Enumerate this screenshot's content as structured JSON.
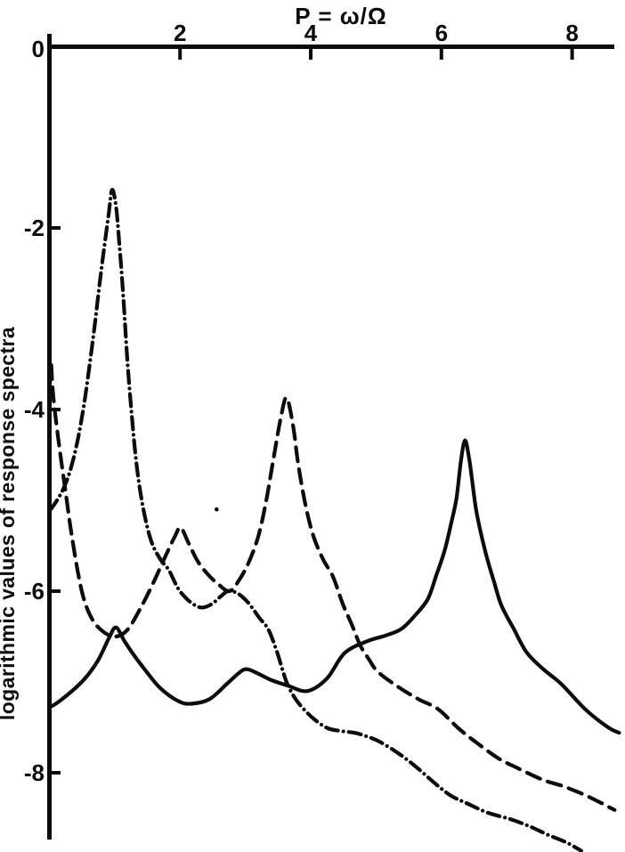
{
  "page": {
    "background": "#ffffff",
    "ink": "#0c0c0c"
  },
  "chart_data": {
    "type": "line",
    "title": "P = ω/Ω",
    "xlabel": "P = ω/Ω",
    "ylabel": "logarithmic values of response spectra",
    "origin_tick_label": "0",
    "x_ticks": [
      2,
      4,
      6,
      8
    ],
    "x_tick_labels": [
      "2",
      "4",
      "6",
      "8"
    ],
    "y_ticks": [
      -2,
      -4,
      -6,
      -8
    ],
    "y_tick_labels": [
      "-2",
      "-4",
      "-6",
      "-8"
    ],
    "xlim": [
      0,
      8.65
    ],
    "ylim": [
      -8.9,
      0
    ],
    "grid": false,
    "legend_position": "none",
    "axis_color": "#0c0c0c",
    "series": [
      {
        "name": "solid-curve",
        "style": "solid",
        "main_peak": {
          "P": 6.36,
          "value": -4.34
        },
        "points": [
          [
            0.0,
            -7.28
          ],
          [
            0.16,
            -7.21
          ],
          [
            0.51,
            -6.99
          ],
          [
            0.74,
            -6.77
          ],
          [
            0.91,
            -6.52
          ],
          [
            1.02,
            -6.4
          ],
          [
            1.15,
            -6.55
          ],
          [
            1.29,
            -6.7
          ],
          [
            1.49,
            -6.89
          ],
          [
            1.7,
            -7.07
          ],
          [
            1.97,
            -7.21
          ],
          [
            2.17,
            -7.24
          ],
          [
            2.45,
            -7.19
          ],
          [
            2.72,
            -7.02
          ],
          [
            2.92,
            -6.89
          ],
          [
            3.03,
            -6.86
          ],
          [
            3.2,
            -6.91
          ],
          [
            3.4,
            -6.98
          ],
          [
            3.65,
            -7.04
          ],
          [
            3.95,
            -7.1
          ],
          [
            4.25,
            -6.96
          ],
          [
            4.52,
            -6.68
          ],
          [
            4.87,
            -6.55
          ],
          [
            5.14,
            -6.49
          ],
          [
            5.38,
            -6.42
          ],
          [
            5.58,
            -6.28
          ],
          [
            5.79,
            -6.09
          ],
          [
            5.92,
            -5.83
          ],
          [
            6.05,
            -5.55
          ],
          [
            6.15,
            -5.25
          ],
          [
            6.23,
            -4.98
          ],
          [
            6.3,
            -4.56
          ],
          [
            6.36,
            -4.34
          ],
          [
            6.42,
            -4.52
          ],
          [
            6.47,
            -4.78
          ],
          [
            6.53,
            -5.1
          ],
          [
            6.61,
            -5.38
          ],
          [
            6.7,
            -5.64
          ],
          [
            6.81,
            -5.91
          ],
          [
            6.92,
            -6.16
          ],
          [
            7.11,
            -6.42
          ],
          [
            7.31,
            -6.68
          ],
          [
            7.56,
            -6.86
          ],
          [
            7.83,
            -7.02
          ],
          [
            8.2,
            -7.3
          ],
          [
            8.55,
            -7.5
          ],
          [
            8.72,
            -7.56
          ]
        ]
      },
      {
        "name": "dashed-curve",
        "style": "dashed",
        "main_peak": {
          "P": 3.63,
          "value": -3.87
        },
        "points": [
          [
            0.03,
            -3.51
          ],
          [
            0.06,
            -3.85
          ],
          [
            0.14,
            -4.34
          ],
          [
            0.24,
            -4.86
          ],
          [
            0.35,
            -5.42
          ],
          [
            0.49,
            -5.98
          ],
          [
            0.62,
            -6.26
          ],
          [
            0.78,
            -6.42
          ],
          [
            0.99,
            -6.5
          ],
          [
            1.19,
            -6.43
          ],
          [
            1.4,
            -6.18
          ],
          [
            1.59,
            -5.91
          ],
          [
            1.78,
            -5.61
          ],
          [
            1.92,
            -5.4
          ],
          [
            2.01,
            -5.3
          ],
          [
            2.13,
            -5.47
          ],
          [
            2.27,
            -5.67
          ],
          [
            2.42,
            -5.81
          ],
          [
            2.58,
            -5.92
          ],
          [
            2.76,
            -6.0
          ],
          [
            2.92,
            -5.86
          ],
          [
            3.06,
            -5.67
          ],
          [
            3.2,
            -5.39
          ],
          [
            3.32,
            -5.0
          ],
          [
            3.43,
            -4.54
          ],
          [
            3.54,
            -4.1
          ],
          [
            3.63,
            -3.87
          ],
          [
            3.73,
            -4.18
          ],
          [
            3.81,
            -4.61
          ],
          [
            3.92,
            -5.05
          ],
          [
            4.04,
            -5.39
          ],
          [
            4.19,
            -5.65
          ],
          [
            4.34,
            -5.84
          ],
          [
            4.49,
            -6.14
          ],
          [
            4.63,
            -6.37
          ],
          [
            4.76,
            -6.6
          ],
          [
            4.89,
            -6.75
          ],
          [
            5.03,
            -6.89
          ],
          [
            5.35,
            -7.06
          ],
          [
            5.65,
            -7.19
          ],
          [
            5.95,
            -7.3
          ],
          [
            6.26,
            -7.51
          ],
          [
            6.56,
            -7.68
          ],
          [
            6.87,
            -7.84
          ],
          [
            7.17,
            -7.95
          ],
          [
            7.56,
            -8.08
          ],
          [
            7.87,
            -8.15
          ],
          [
            8.24,
            -8.26
          ],
          [
            8.65,
            -8.41
          ]
        ]
      },
      {
        "name": "dash-dot-curve",
        "style": "dash-dot",
        "main_peak": {
          "P": 0.96,
          "value": -1.58
        },
        "points": [
          [
            0.01,
            -5.11
          ],
          [
            0.1,
            -5.02
          ],
          [
            0.21,
            -4.88
          ],
          [
            0.32,
            -4.67
          ],
          [
            0.43,
            -4.35
          ],
          [
            0.53,
            -3.95
          ],
          [
            0.62,
            -3.49
          ],
          [
            0.7,
            -3.04
          ],
          [
            0.78,
            -2.55
          ],
          [
            0.85,
            -2.16
          ],
          [
            0.91,
            -1.84
          ],
          [
            0.96,
            -1.58
          ],
          [
            1.02,
            -1.76
          ],
          [
            1.07,
            -2.16
          ],
          [
            1.13,
            -2.73
          ],
          [
            1.19,
            -3.41
          ],
          [
            1.26,
            -4.05
          ],
          [
            1.34,
            -4.64
          ],
          [
            1.44,
            -5.1
          ],
          [
            1.56,
            -5.45
          ],
          [
            1.7,
            -5.65
          ],
          [
            1.83,
            -5.77
          ],
          [
            1.97,
            -5.97
          ],
          [
            2.11,
            -6.09
          ],
          [
            2.24,
            -6.16
          ],
          [
            2.35,
            -6.18
          ],
          [
            2.49,
            -6.14
          ],
          [
            2.62,
            -6.06
          ],
          [
            2.73,
            -6.0
          ],
          [
            2.84,
            -6.01
          ],
          [
            2.95,
            -6.06
          ],
          [
            3.07,
            -6.15
          ],
          [
            3.21,
            -6.29
          ],
          [
            3.35,
            -6.42
          ],
          [
            3.48,
            -6.66
          ],
          [
            3.63,
            -7.0
          ],
          [
            3.77,
            -7.19
          ],
          [
            3.92,
            -7.32
          ],
          [
            4.07,
            -7.42
          ],
          [
            4.26,
            -7.51
          ],
          [
            4.46,
            -7.54
          ],
          [
            4.67,
            -7.56
          ],
          [
            4.86,
            -7.6
          ],
          [
            5.06,
            -7.66
          ],
          [
            5.35,
            -7.79
          ],
          [
            5.62,
            -7.94
          ],
          [
            5.89,
            -8.11
          ],
          [
            6.14,
            -8.25
          ],
          [
            6.4,
            -8.34
          ],
          [
            6.71,
            -8.44
          ],
          [
            7.05,
            -8.51
          ],
          [
            7.35,
            -8.59
          ],
          [
            7.62,
            -8.68
          ],
          [
            7.92,
            -8.77
          ],
          [
            8.14,
            -8.86
          ]
        ]
      }
    ],
    "annotations": {
      "stray_dot": {
        "P": 2.56,
        "value": -5.1
      }
    }
  }
}
